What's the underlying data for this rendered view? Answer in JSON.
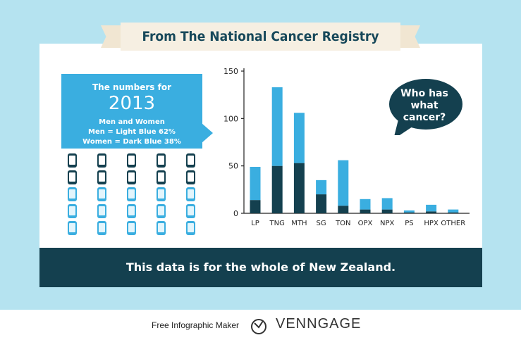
{
  "header": {
    "title": "From The National Cancer Registry"
  },
  "infobox": {
    "line1": "The numbers for",
    "year": "2013",
    "line2": "Men and Women",
    "line3": "Men = Light Blue 62%",
    "line4": "Women = Dark  Blue 38%"
  },
  "phone_grid": {
    "rows": 5,
    "cols": 5,
    "dark_rows": 2,
    "light_rows": 3
  },
  "bubble": {
    "line1": "Who has",
    "line2": "what",
    "line3": "cancer?"
  },
  "footer": {
    "text": "This data is for the whole of New Zealand."
  },
  "credit": {
    "small": "Free Infographic Maker",
    "brand": "VENNGAGE"
  },
  "colors": {
    "background": "#b5e3f0",
    "light_blue": "#3aaee0",
    "dark_blue": "#14404f",
    "banner": "#f6efe2"
  },
  "chart_data": {
    "type": "bar",
    "stacked": true,
    "categories": [
      "LP",
      "TNG",
      "MTH",
      "SG",
      "TON",
      "OPX",
      "NPX",
      "PS",
      "HPX",
      "OTHER"
    ],
    "series": [
      {
        "name": "Women",
        "color": "#14404f",
        "values": [
          14,
          50,
          53,
          20,
          8,
          4,
          4,
          1,
          2,
          1
        ]
      },
      {
        "name": "Men",
        "color": "#3aaee0",
        "values": [
          35,
          83,
          53,
          15,
          48,
          11,
          12,
          2,
          7,
          3
        ]
      }
    ],
    "yticks": [
      0,
      50,
      100,
      150
    ],
    "ylim": [
      0,
      150
    ],
    "xlabel": "",
    "ylabel": "",
    "grid": false
  }
}
